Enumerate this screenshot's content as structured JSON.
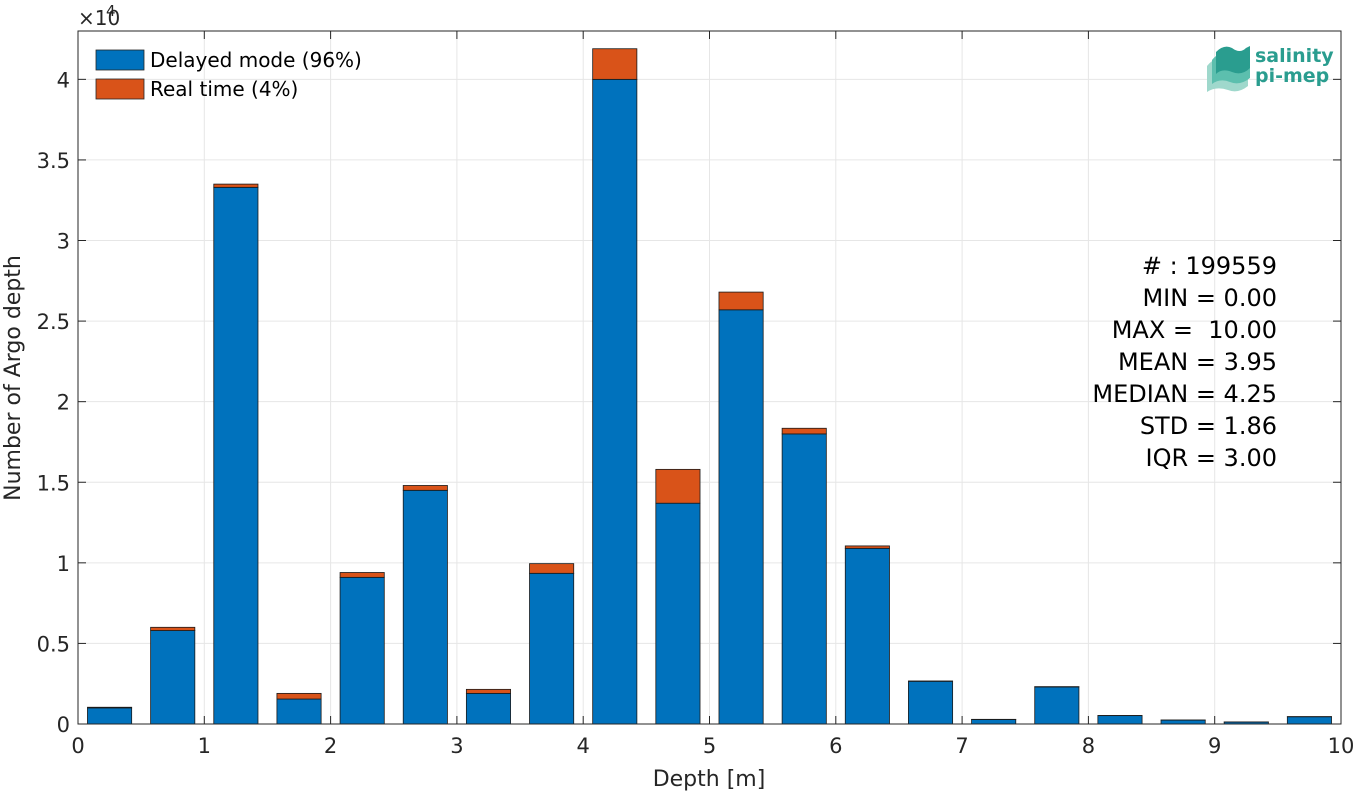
{
  "chart_data": {
    "type": "bar",
    "stacked": true,
    "xlabel": "Depth [m]",
    "ylabel": "Number of Argo depth",
    "y_exponent_label": "×10",
    "y_exponent_power": "4",
    "xlim": [
      0,
      10
    ],
    "ylim": [
      0,
      43000
    ],
    "grid": true,
    "legend_position": "top-left",
    "x_ticks": [
      0,
      1,
      2,
      3,
      4,
      5,
      6,
      7,
      8,
      9,
      10
    ],
    "x_tick_labels": [
      "0",
      "1",
      "2",
      "3",
      "4",
      "5",
      "6",
      "7",
      "8",
      "9",
      "10"
    ],
    "y_ticks": [
      0,
      5000,
      10000,
      15000,
      20000,
      25000,
      30000,
      35000,
      40000
    ],
    "y_tick_labels": [
      "0",
      "0.5",
      "1",
      "1.5",
      "2",
      "2.5",
      "3",
      "3.5",
      "4"
    ],
    "bin_centers": [
      0.25,
      0.75,
      1.25,
      1.75,
      2.25,
      2.75,
      3.25,
      3.75,
      4.25,
      4.75,
      5.25,
      5.75,
      6.25,
      6.75,
      7.25,
      7.75,
      8.25,
      8.75,
      9.25,
      9.75
    ],
    "bar_width": 0.35,
    "series": [
      {
        "name": "Delayed mode (96%)",
        "color": "#0072BD",
        "values": [
          1000,
          5800,
          33300,
          1550,
          9100,
          14500,
          1900,
          9350,
          40000,
          13700,
          25700,
          18000,
          10900,
          2650,
          280,
          2300,
          520,
          240,
          120,
          450
        ]
      },
      {
        "name": "Real time (4%)",
        "color": "#D95319",
        "values": [
          40,
          200,
          200,
          350,
          300,
          300,
          250,
          600,
          1900,
          2100,
          1100,
          350,
          150,
          20,
          10,
          20,
          10,
          10,
          10,
          10
        ]
      }
    ],
    "stats": [
      "# : 199559",
      "MIN = 0.00",
      "MAX =  10.00",
      "MEAN = 3.95",
      "MEDIAN = 4.25",
      "STD = 1.86",
      "IQR = 3.00"
    ]
  },
  "logo": {
    "line1": "salinity",
    "line2": "pi-mep",
    "color": "#2a9d8f"
  }
}
